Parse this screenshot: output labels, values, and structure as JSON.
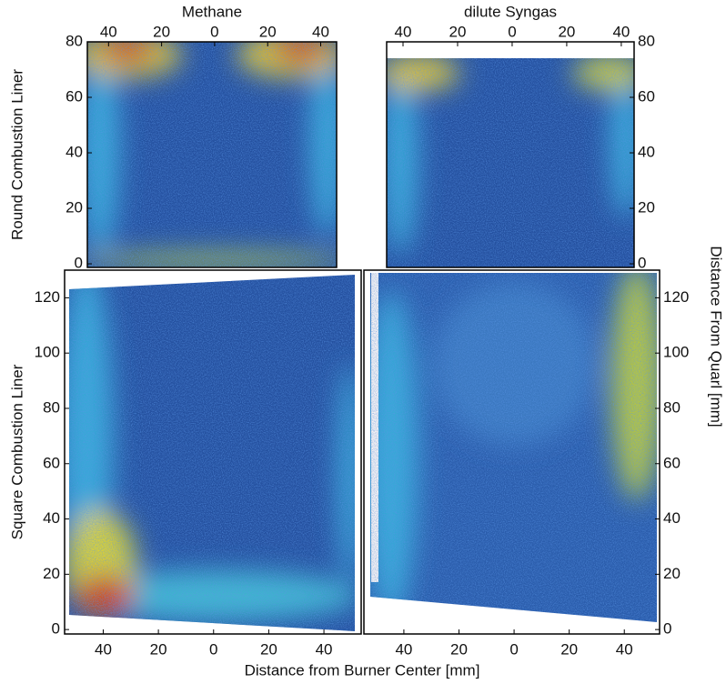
{
  "chart_data": [
    {
      "type": "heatmap",
      "title": "Methane",
      "ylabel": "Round Combustion Liner",
      "xaxis": "top",
      "yaxis": "left",
      "xlim": [
        -48,
        46
      ],
      "ylim": [
        -1.3,
        80
      ],
      "xticks": [
        {
          "value": -40,
          "label": "40"
        },
        {
          "value": -20,
          "label": "20"
        },
        0,
        20,
        40
      ],
      "yticks": [
        0,
        20,
        40,
        60,
        80
      ]
    },
    {
      "type": "heatmap",
      "title": "dilute Syngas",
      "xaxis": "top",
      "yaxis": "right",
      "xlim": [
        -46,
        44.7
      ],
      "ylim": [
        -1.3,
        80
      ],
      "xticks": [
        {
          "value": -40,
          "label": "40"
        },
        {
          "value": -20,
          "label": "20"
        },
        0,
        20,
        40
      ],
      "yticks": [
        0,
        20,
        40,
        60,
        80
      ]
    },
    {
      "type": "heatmap",
      "ylabel": "Square Combustion Liner",
      "xaxis": "bottom",
      "yaxis": "left",
      "xlim": [
        -54,
        53.5
      ],
      "ylim": [
        -1.6,
        130
      ],
      "xticks": [
        {
          "value": -40,
          "label": "40"
        },
        {
          "value": -20,
          "label": "20"
        },
        0,
        20,
        40
      ],
      "yticks": [
        0,
        20,
        40,
        60,
        80,
        100,
        120
      ]
    },
    {
      "type": "heatmap",
      "xaxis": "bottom",
      "yaxis": "right",
      "xlim": [
        -54.5,
        52.8
      ],
      "ylim": [
        -1.6,
        130
      ],
      "xticks": [
        {
          "value": -40,
          "label": "40"
        },
        {
          "value": -20,
          "label": "20"
        },
        0,
        20,
        40
      ],
      "yticks": [
        0,
        20,
        40,
        60,
        80,
        100,
        120
      ]
    }
  ],
  "figure_labels": {
    "xlabel": "Distance from Burner Center [mm]",
    "ylabel": "Distance From Quarl [mm]"
  }
}
